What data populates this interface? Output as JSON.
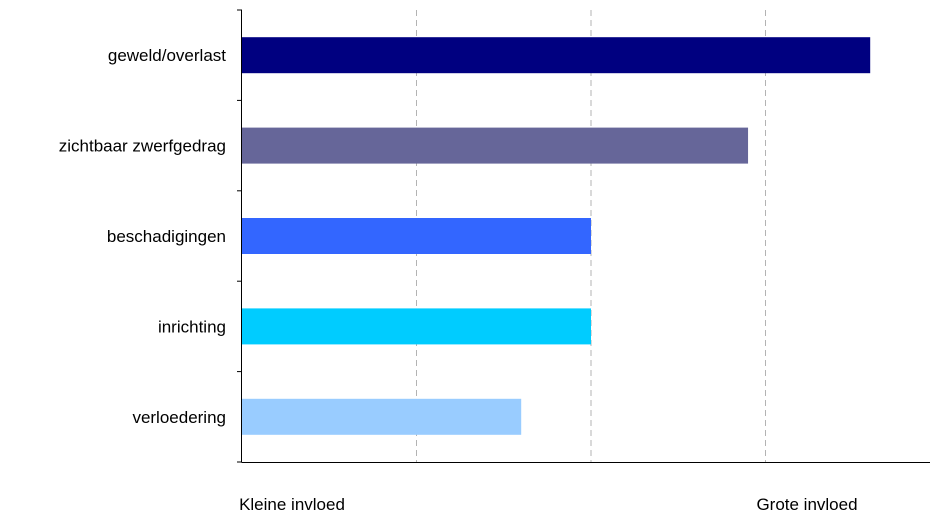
{
  "chart_data": {
    "type": "bar",
    "orientation": "horizontal",
    "categories": [
      "geweld/overlast",
      "zichtbaar zwerfgedrag",
      "beschadigingen",
      "inrichting",
      "verloedering"
    ],
    "values": [
      4.6,
      3.9,
      3.0,
      3.0,
      2.6
    ],
    "colors": [
      "#000080",
      "#666699",
      "#3366FF",
      "#00CCFF",
      "#99CCFF"
    ],
    "xlim": [
      1,
      5
    ],
    "grid": "vertical dashed",
    "x_axis_labels": {
      "low": "Kleine invloed",
      "high": "Grote invloed"
    },
    "title": "",
    "legend": "none"
  }
}
